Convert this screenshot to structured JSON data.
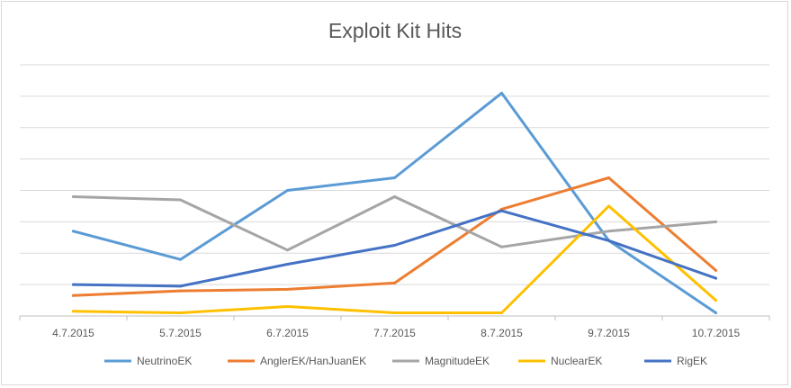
{
  "chart_data": {
    "type": "line",
    "title": "Exploit Kit Hits",
    "xlabel": "",
    "ylabel": "",
    "categories": [
      "4.7.2015",
      "5.7.2015",
      "6.7.2015",
      "7.7.2015",
      "8.7.2015",
      "9.7.2015",
      "10.7.2015"
    ],
    "ylim": [
      0,
      8
    ],
    "y_gridlines": 8,
    "y_tick_labels_shown": false,
    "grid": true,
    "legend": "bottom",
    "series": [
      {
        "name": "NeutrinoEK",
        "color": "#5b9bd5",
        "values": [
          2.7,
          1.8,
          4.0,
          4.4,
          7.1,
          2.4,
          0.1
        ]
      },
      {
        "name": "AnglerEK/HanJuanEK",
        "color": "#ed7d31",
        "values": [
          0.65,
          0.8,
          0.85,
          1.05,
          3.4,
          4.4,
          1.45
        ]
      },
      {
        "name": "MagnitudeEK",
        "color": "#a5a5a5",
        "values": [
          3.8,
          3.7,
          2.1,
          3.8,
          2.2,
          2.7,
          3.0
        ]
      },
      {
        "name": "NuclearEK",
        "color": "#ffc000",
        "values": [
          0.15,
          0.1,
          0.3,
          0.1,
          0.1,
          3.5,
          0.5
        ]
      },
      {
        "name": "RigEK",
        "color": "#4472c4",
        "values": [
          1.0,
          0.95,
          1.65,
          2.25,
          3.35,
          2.4,
          1.2
        ]
      }
    ]
  }
}
